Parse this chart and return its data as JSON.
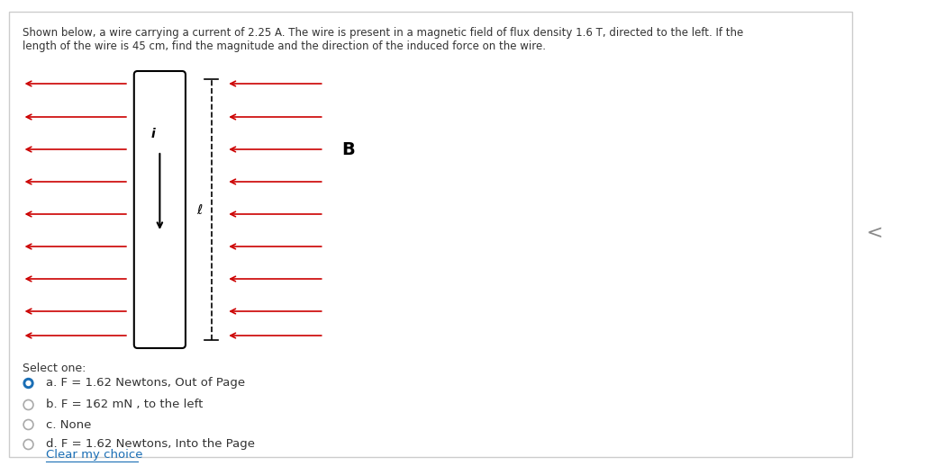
{
  "title_text": "Shown below, a wire carrying a current of 2.25 A. The wire is present in a magnetic field of flux density 1.6 T, directed to the left. If the\nlength of the wire is 45 cm, find the magnitude and the direction of the induced force on the wire.",
  "arrow_color": "#cc0000",
  "wire_color": "#000000",
  "B_label": "B",
  "i_label": "i",
  "l_label": "ℓ",
  "options": [
    {
      "label": "a. F = 1.62 Newtons, Out of Page",
      "selected": true
    },
    {
      "label": "b. F = 162 mN , to the left",
      "selected": false
    },
    {
      "label": "c. None",
      "selected": false
    },
    {
      "label": "d. F = 1.62 Newtons, Into the Page",
      "selected": false
    }
  ],
  "clear_label": "Clear my choice",
  "select_label": "Select one:",
  "radio_color_selected": "#1a6eb5",
  "radio_color_unselected": "#aaaaaa",
  "text_color": "#333333",
  "link_color": "#1a6eb5",
  "bg_color": "#ffffff",
  "outer_border_color": "#cccccc"
}
